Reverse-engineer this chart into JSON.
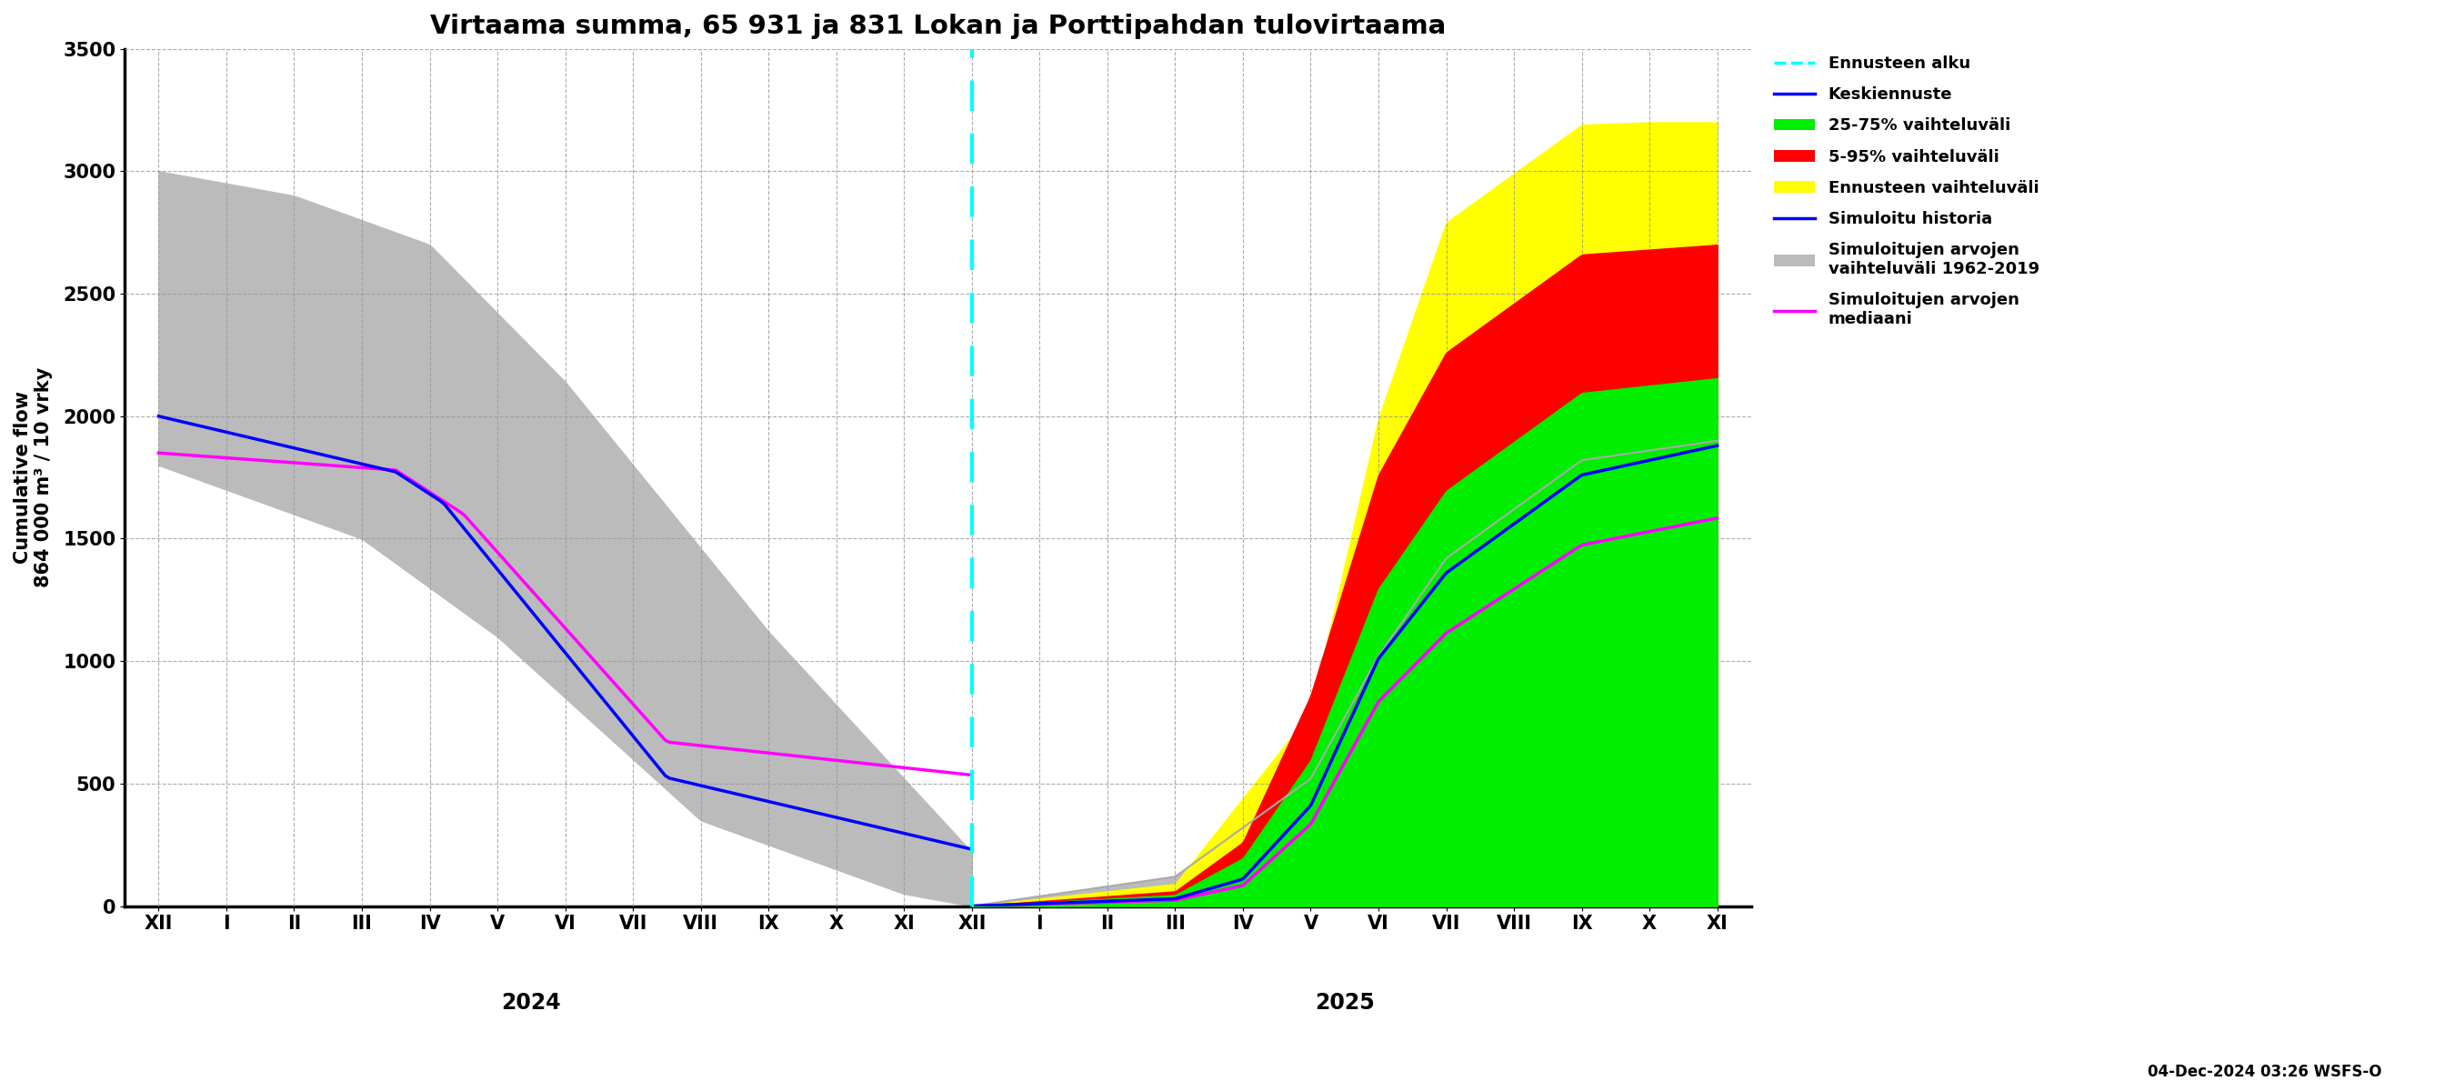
{
  "title": "Virtaama summa, 65 931 ja 831 Lokan ja Porttipahdan tulovirtaama",
  "ylabel": "Cumulative flow",
  "ylabel2": "864 000 m³ / 10 vrky",
  "ylim": [
    0,
    3500
  ],
  "yticks": [
    0,
    500,
    1000,
    1500,
    2000,
    2500,
    3000,
    3500
  ],
  "footnote": "04-Dec-2024 03:26 WSFS-O",
  "colors": {
    "cyan": "#00FFFF",
    "blue": "#0000FF",
    "green": "#00EE00",
    "red": "#FF0000",
    "yellow": "#FFFF00",
    "gray_band": "#BBBBBB",
    "magenta": "#FF00FF"
  }
}
